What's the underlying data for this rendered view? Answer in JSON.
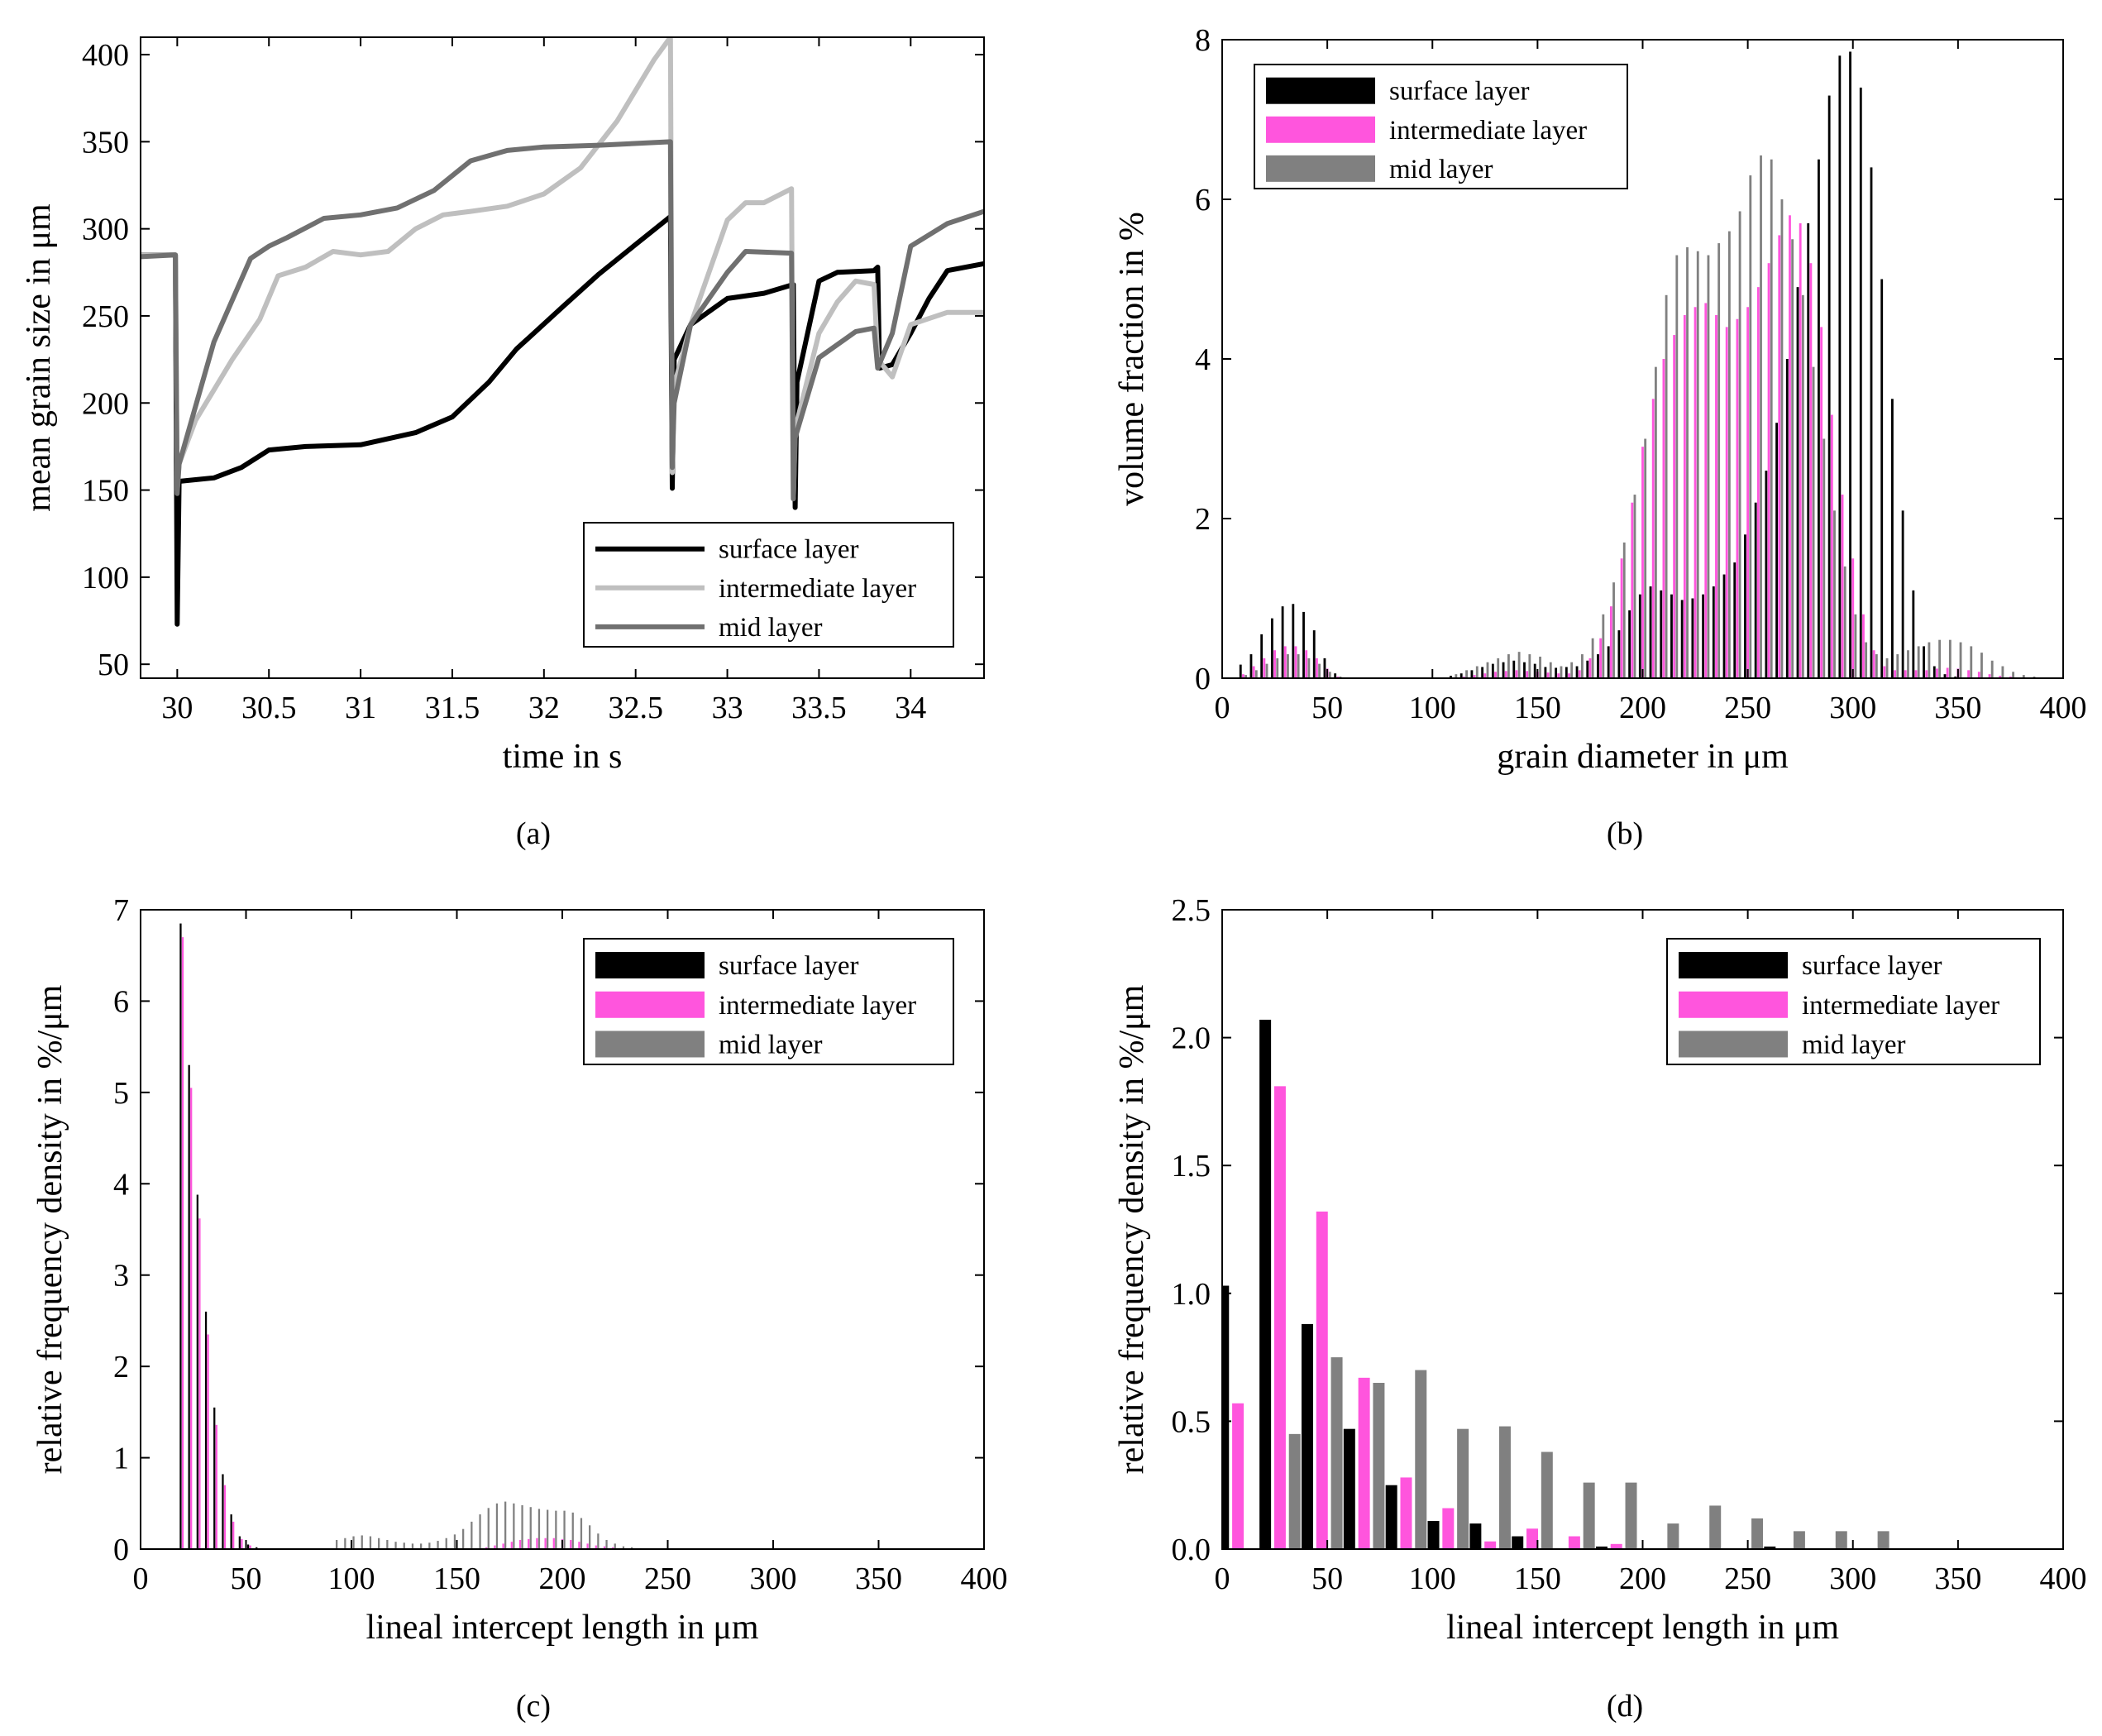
{
  "figure": {
    "captions": {
      "a": "(a)",
      "b": "(b)",
      "c": "(c)",
      "d": "(d)"
    }
  },
  "colors": {
    "surface": "#000000",
    "intermediate_line": "#bfbfbf",
    "mid_line": "#707070",
    "intermediate_bar": "#ff55dd",
    "mid_bar": "#808080"
  },
  "legend_labels": [
    "surface layer",
    "intermediate layer",
    "mid layer"
  ],
  "chart_data": [
    {
      "id": "a",
      "type": "line",
      "caption": "(a)",
      "xlabel": "time in s",
      "ylabel": "mean grain size in μm",
      "xlim": [
        29.8,
        34.4
      ],
      "ylim": [
        42,
        410
      ],
      "xticks": [
        30,
        30.5,
        31,
        31.5,
        32,
        32.5,
        33,
        33.5,
        34
      ],
      "xtick_labels": [
        "30",
        "30.5",
        "31",
        "31.5",
        "32",
        "32.5",
        "33",
        "33.5",
        "34"
      ],
      "yticks": [
        50,
        100,
        150,
        200,
        250,
        300,
        350,
        400
      ],
      "ytick_labels": [
        "50",
        "100",
        "150",
        "200",
        "250",
        "300",
        "350",
        "400"
      ],
      "legend": [
        "surface layer",
        "intermediate layer",
        "mid layer"
      ],
      "series": [
        {
          "name": "surface layer",
          "x": [
            29.8,
            29.99,
            30.0,
            30.01,
            30.2,
            30.35,
            30.5,
            30.7,
            31.0,
            31.3,
            31.5,
            31.7,
            31.85,
            32.1,
            32.3,
            32.5,
            32.69,
            32.7,
            32.71,
            32.8,
            33.0,
            33.2,
            33.36,
            33.37,
            33.38,
            33.5,
            33.6,
            33.8,
            33.82,
            33.83,
            33.9,
            34.0,
            34.1,
            34.2,
            34.4
          ],
          "y": [
            285,
            285,
            73,
            155,
            157,
            163,
            173,
            175,
            176,
            183,
            192,
            212,
            231,
            255,
            274,
            291,
            307,
            151,
            225,
            245,
            260,
            263,
            268,
            140,
            212,
            270,
            275,
            276,
            278,
            220,
            222,
            240,
            260,
            276,
            280
          ]
        },
        {
          "name": "intermediate layer",
          "x": [
            29.8,
            29.99,
            30.0,
            30.01,
            30.1,
            30.3,
            30.45,
            30.55,
            30.7,
            30.85,
            31.0,
            31.15,
            31.3,
            31.45,
            31.6,
            31.8,
            32.0,
            32.2,
            32.4,
            32.6,
            32.69,
            32.7,
            32.71,
            32.8,
            32.9,
            33.0,
            33.1,
            33.2,
            33.35,
            33.36,
            33.37,
            33.5,
            33.6,
            33.7,
            33.8,
            33.82,
            33.9,
            34.0,
            34.2,
            34.4
          ],
          "y": [
            285,
            285,
            150,
            165,
            190,
            225,
            248,
            273,
            278,
            287,
            285,
            287,
            300,
            308,
            310,
            313,
            320,
            335,
            362,
            397,
            410,
            160,
            210,
            245,
            275,
            305,
            315,
            315,
            323,
            145,
            185,
            240,
            258,
            270,
            268,
            225,
            215,
            245,
            252,
            252
          ]
        },
        {
          "name": "mid layer",
          "x": [
            29.8,
            29.99,
            30.0,
            30.01,
            30.2,
            30.4,
            30.5,
            30.6,
            30.8,
            31.0,
            31.2,
            31.4,
            31.6,
            31.8,
            32.0,
            32.3,
            32.69,
            32.7,
            32.71,
            32.8,
            33.0,
            33.1,
            33.35,
            33.36,
            33.37,
            33.5,
            33.7,
            33.8,
            33.82,
            33.9,
            34.0,
            34.2,
            34.4
          ],
          "y": [
            284,
            285,
            148,
            165,
            235,
            283,
            290,
            295,
            306,
            308,
            312,
            322,
            339,
            345,
            347,
            348,
            350,
            163,
            200,
            245,
            275,
            287,
            286,
            145,
            180,
            226,
            241,
            243,
            220,
            240,
            290,
            303,
            310
          ]
        }
      ]
    },
    {
      "id": "b",
      "type": "bar",
      "caption": "(b)",
      "xlabel": "grain diameter in μm",
      "ylabel": "volume fraction in %",
      "xlim": [
        0,
        400
      ],
      "ylim": [
        0,
        8
      ],
      "xticks": [
        0,
        50,
        100,
        150,
        200,
        250,
        300,
        350,
        400
      ],
      "xtick_labels": [
        "0",
        "50",
        "100",
        "150",
        "200",
        "250",
        "300",
        "350",
        "400"
      ],
      "yticks": [
        0,
        2,
        4,
        6,
        8
      ],
      "ytick_labels": [
        "0",
        "2",
        "4",
        "6",
        "8"
      ],
      "legend": [
        "surface layer",
        "intermediate layer",
        "mid layer"
      ],
      "bin_start": 5,
      "bin_width": 5,
      "series": [
        {
          "name": "surface layer",
          "values": [
            0,
            0.17,
            0.3,
            0.55,
            0.75,
            0.9,
            0.93,
            0.83,
            0.6,
            0.25,
            0.06,
            0,
            0,
            0,
            0,
            0,
            0,
            0,
            0,
            0,
            0,
            0.03,
            0.06,
            0.1,
            0.14,
            0.18,
            0.2,
            0.22,
            0.2,
            0.18,
            0.14,
            0.13,
            0.14,
            0.15,
            0.22,
            0.3,
            0.4,
            0.6,
            0.85,
            1.05,
            1.15,
            1.1,
            1.05,
            0.98,
            1.0,
            1.05,
            1.15,
            1.3,
            1.45,
            1.8,
            2.2,
            2.6,
            3.2,
            4.0,
            4.9,
            5.7,
            6.5,
            7.3,
            7.8,
            7.85,
            7.4,
            6.4,
            5.0,
            3.5,
            2.1,
            1.1,
            0.4,
            0.15,
            0.05,
            0.02,
            0.01,
            0,
            0,
            0,
            0,
            0,
            0,
            0,
            0,
            0
          ]
        },
        {
          "name": "intermediate layer",
          "values": [
            0,
            0.05,
            0.15,
            0.25,
            0.35,
            0.4,
            0.4,
            0.35,
            0.25,
            0.12,
            0.02,
            0,
            0,
            0,
            0,
            0,
            0,
            0,
            0,
            0,
            0,
            0.01,
            0.02,
            0.04,
            0.06,
            0.08,
            0.09,
            0.1,
            0.09,
            0.08,
            0.07,
            0.06,
            0.06,
            0.1,
            0.25,
            0.5,
            0.9,
            1.5,
            2.2,
            2.9,
            3.5,
            4.0,
            4.3,
            4.55,
            4.65,
            4.7,
            4.55,
            4.4,
            4.5,
            4.65,
            4.9,
            5.2,
            5.55,
            5.8,
            5.7,
            5.2,
            4.4,
            3.3,
            2.3,
            1.5,
            0.8,
            0.35,
            0.15,
            0.1,
            0.1,
            0.1,
            0.1,
            0.12,
            0.13,
            0.12,
            0.1,
            0.08,
            0.05,
            0.03,
            0.02,
            0.01,
            0,
            0,
            0,
            0
          ]
        },
        {
          "name": "mid layer",
          "values": [
            0,
            0.04,
            0.1,
            0.18,
            0.25,
            0.3,
            0.3,
            0.25,
            0.18,
            0.08,
            0.02,
            0,
            0,
            0,
            0,
            0,
            0,
            0,
            0,
            0,
            0,
            0.05,
            0.1,
            0.15,
            0.2,
            0.25,
            0.3,
            0.33,
            0.3,
            0.27,
            0.2,
            0.15,
            0.2,
            0.3,
            0.5,
            0.8,
            1.2,
            1.7,
            2.3,
            3.0,
            3.9,
            4.8,
            5.3,
            5.4,
            5.35,
            5.3,
            5.45,
            5.6,
            5.85,
            6.3,
            6.55,
            6.5,
            6.0,
            5.5,
            4.8,
            3.9,
            3.0,
            2.1,
            1.4,
            0.8,
            0.45,
            0.3,
            0.25,
            0.3,
            0.35,
            0.4,
            0.45,
            0.48,
            0.48,
            0.45,
            0.4,
            0.32,
            0.22,
            0.15,
            0.08,
            0.04,
            0.02,
            0.01,
            0,
            0
          ]
        }
      ]
    },
    {
      "id": "c",
      "type": "bar",
      "caption": "(c)",
      "xlabel": "lineal intercept length in μm",
      "ylabel": "relative frequency density in %/μm",
      "xlim": [
        0,
        400
      ],
      "ylim": [
        0,
        7
      ],
      "xticks": [
        0,
        50,
        100,
        150,
        200,
        250,
        300,
        350,
        400
      ],
      "xtick_labels": [
        "0",
        "50",
        "100",
        "150",
        "200",
        "250",
        "300",
        "350",
        "400"
      ],
      "yticks": [
        0,
        1,
        2,
        3,
        4,
        5,
        6,
        7
      ],
      "ytick_labels": [
        "0",
        "1",
        "2",
        "3",
        "4",
        "5",
        "6",
        "7"
      ],
      "legend": [
        "surface layer",
        "intermediate layer",
        "mid layer"
      ],
      "bin_start": 20,
      "bin_width": 4,
      "series": [
        {
          "name": "surface layer",
          "values": [
            6.85,
            5.3,
            3.88,
            2.6,
            1.55,
            0.82,
            0.38,
            0.14,
            0.05,
            0.02,
            0,
            0,
            0,
            0,
            0,
            0,
            0,
            0,
            0,
            0,
            0,
            0,
            0,
            0,
            0,
            0,
            0,
            0,
            0,
            0,
            0,
            0,
            0,
            0,
            0,
            0,
            0,
            0,
            0,
            0,
            0,
            0,
            0,
            0,
            0,
            0,
            0,
            0,
            0,
            0,
            0,
            0,
            0,
            0,
            0,
            0,
            0,
            0,
            0,
            0,
            0,
            0,
            0,
            0,
            0
          ]
        },
        {
          "name": "intermediate layer",
          "values": [
            6.7,
            5.05,
            3.62,
            2.35,
            1.36,
            0.7,
            0.3,
            0.11,
            0.04,
            0.01,
            0,
            0,
            0,
            0,
            0,
            0,
            0,
            0,
            0,
            0,
            0,
            0,
            0,
            0,
            0,
            0,
            0,
            0,
            0,
            0,
            0,
            0,
            0,
            0,
            0,
            0,
            0.02,
            0.04,
            0.06,
            0.08,
            0.1,
            0.11,
            0.12,
            0.12,
            0.12,
            0.11,
            0.1,
            0.08,
            0.06,
            0.04,
            0.03,
            0.02,
            0.01,
            0.01,
            0,
            0,
            0,
            0,
            0,
            0,
            0,
            0,
            0,
            0,
            0
          ]
        },
        {
          "name": "mid layer",
          "values": [
            0,
            0,
            0,
            0,
            0,
            0,
            0,
            0,
            0,
            0,
            0,
            0,
            0,
            0,
            0,
            0,
            0,
            0,
            0.1,
            0.12,
            0.14,
            0.15,
            0.14,
            0.12,
            0.1,
            0.08,
            0.07,
            0.06,
            0.06,
            0.07,
            0.09,
            0.12,
            0.16,
            0.22,
            0.3,
            0.38,
            0.45,
            0.5,
            0.52,
            0.5,
            0.48,
            0.46,
            0.44,
            0.43,
            0.42,
            0.42,
            0.4,
            0.34,
            0.26,
            0.17,
            0.1,
            0.06,
            0.03,
            0.02,
            0.01,
            0,
            0,
            0,
            0,
            0,
            0,
            0,
            0,
            0,
            0
          ]
        }
      ]
    },
    {
      "id": "d",
      "type": "bar",
      "caption": "(d)",
      "xlabel": "lineal intercept length in μm",
      "ylabel": "relative frequency density in %/μm",
      "xlim": [
        0,
        400
      ],
      "ylim": [
        0,
        2.5
      ],
      "xticks": [
        0,
        50,
        100,
        150,
        200,
        250,
        300,
        350,
        400
      ],
      "xtick_labels": [
        "0",
        "50",
        "100",
        "150",
        "200",
        "250",
        "300",
        "350",
        "400"
      ],
      "yticks": [
        0,
        0.5,
        1.0,
        1.5,
        2.0,
        2.5
      ],
      "ytick_labels": [
        "0.0",
        "0.5",
        "1.0",
        "1.5",
        "2.0",
        "2.5"
      ],
      "legend": [
        "surface layer",
        "intermediate layer",
        "mid layer"
      ],
      "categories": [
        10,
        30,
        50,
        70,
        90,
        110,
        130,
        150,
        170,
        190,
        210,
        230,
        250,
        270,
        290,
        310
      ],
      "series": [
        {
          "name": "surface layer",
          "values": [
            1.03,
            2.07,
            0.88,
            0.47,
            0.25,
            0.11,
            0.1,
            0.05,
            0,
            0.01,
            0,
            0,
            0,
            0.01,
            0,
            0
          ]
        },
        {
          "name": "intermediate layer",
          "values": [
            0.57,
            1.81,
            1.32,
            0.67,
            0.28,
            0.16,
            0.03,
            0.08,
            0.05,
            0.02,
            0,
            0,
            0,
            0,
            0,
            0
          ]
        },
        {
          "name": "mid layer",
          "values": [
            0,
            0.45,
            0.75,
            0.65,
            0.7,
            0.47,
            0.48,
            0.38,
            0.26,
            0.26,
            0.1,
            0.17,
            0.12,
            0.07,
            0.07,
            0.07
          ]
        }
      ]
    }
  ]
}
